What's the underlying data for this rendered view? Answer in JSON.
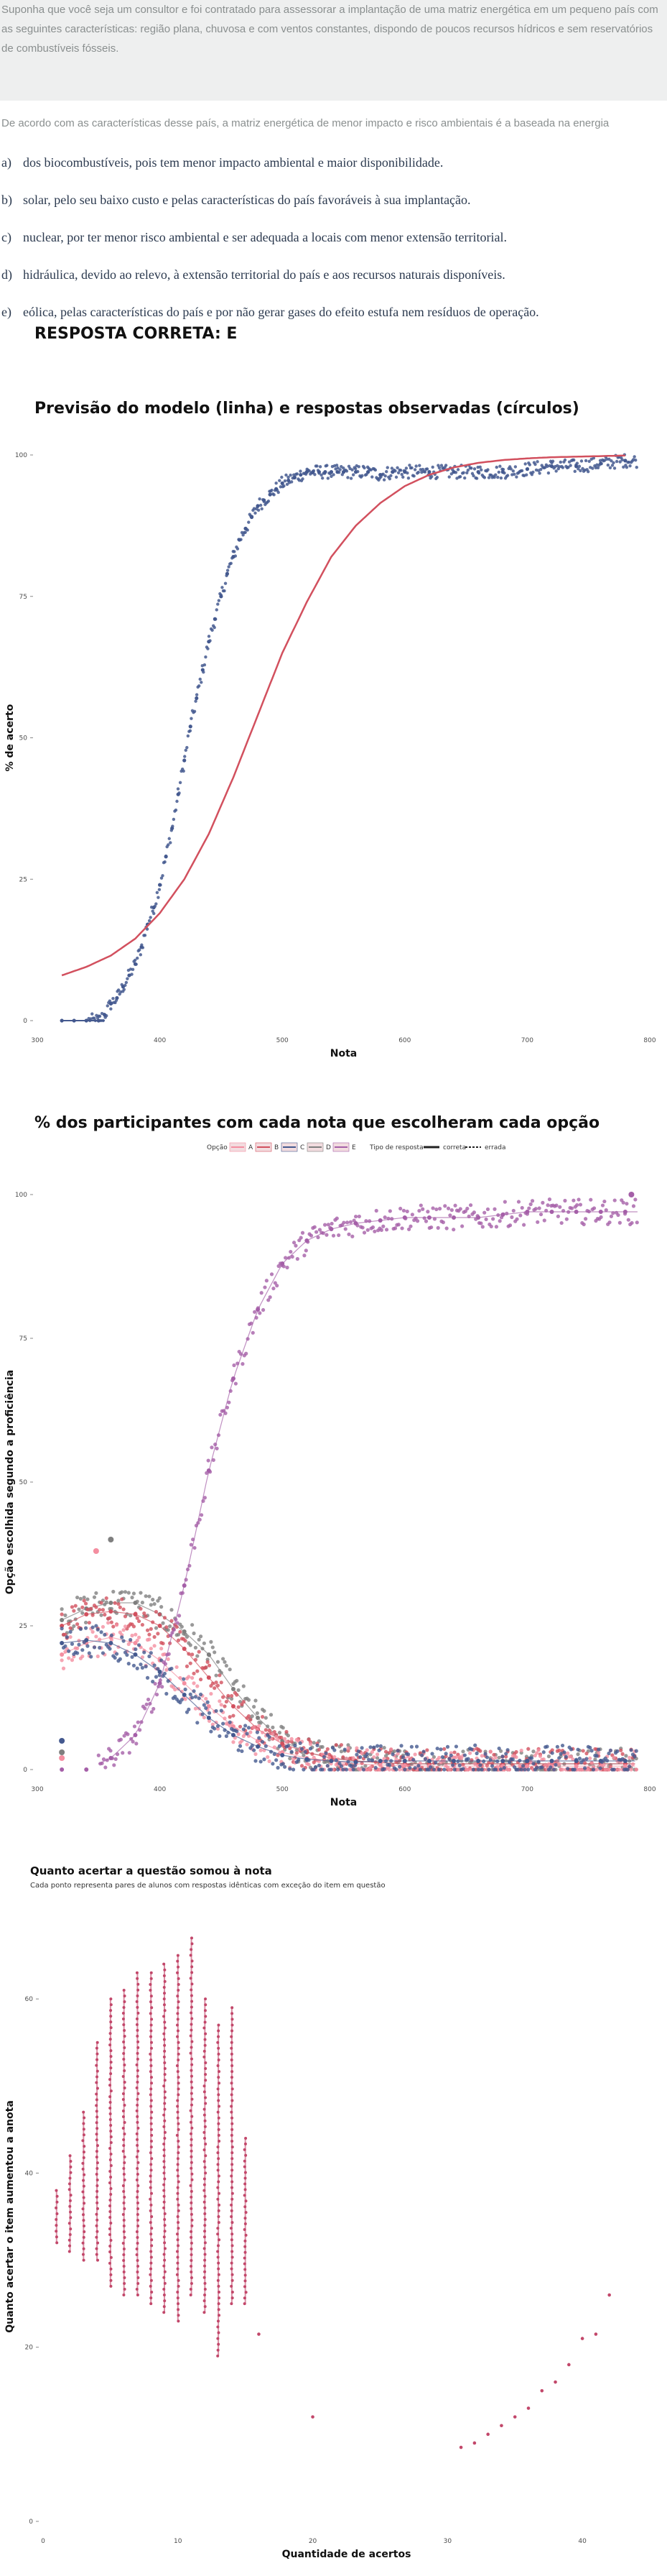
{
  "question": {
    "context": "Suponha que você seja um consultor e foi contratado para assessorar a implantação de uma matriz energética em um pequeno país com as seguintes características: região plana, chuvosa e com ventos constantes, dispondo de poucos recursos hídricos e sem reservatórios de combustíveis fósseis.",
    "stem": "De acordo com as características desse país, a matriz energética de menor impacto e risco ambientais é a baseada na energia",
    "alternatives": [
      {
        "letter": "a)",
        "text": "dos biocombustíveis, pois tem menor impacto ambiental e maior disponibilidade."
      },
      {
        "letter": "b)",
        "text": "solar, pelo seu baixo custo e pelas características do país favoráveis à sua implantação."
      },
      {
        "letter": "c)",
        "text": "nuclear, por ter menor risco ambiental e ser adequada a locais com menor extensão territorial."
      },
      {
        "letter": "d)",
        "text": "hidráulica, devido ao relevo, à extensão territorial do país e aos recursos naturais disponíveis."
      },
      {
        "letter": "e)",
        "text": "eólica, pelas características do país e por não gerar gases do efeito estufa nem resíduos de operação."
      }
    ],
    "answer": "RESPOSTA CORRETA: E"
  },
  "colors": {
    "points": "#44598f",
    "model": "#d2505e",
    "opt_a": "#f48ea0",
    "opt_b": "#d2505e",
    "opt_c": "#44598f",
    "opt_d": "#7f7f7f",
    "opt_e": "#a55fa8",
    "scatter": "#c2476a"
  },
  "chart_data": [
    {
      "type": "scatter",
      "title": "Previsão do modelo (linha) e respostas observadas (círculos)",
      "xlabel": "Nota",
      "ylabel": "% de acerto",
      "xlim": [
        300,
        800
      ],
      "ylim": [
        0,
        100
      ],
      "xticks": [
        300,
        400,
        500,
        600,
        700,
        800
      ],
      "yticks": [
        0,
        25,
        50,
        75,
        100
      ],
      "observed_points": {
        "x": [
          320,
          330,
          340,
          350,
          355,
          360,
          365,
          370,
          375,
          380,
          385,
          390,
          395,
          400,
          405,
          410,
          415,
          420,
          425,
          430,
          435,
          440,
          445,
          450,
          455,
          460,
          465,
          470,
          475,
          480,
          485,
          490,
          495,
          500,
          505,
          510,
          515,
          520,
          525,
          530,
          535,
          540,
          545,
          550,
          560,
          570,
          580,
          590,
          600,
          620,
          640,
          660,
          680,
          700,
          720,
          740,
          760,
          780
        ],
        "y": [
          0,
          0,
          0,
          0,
          1,
          3,
          4,
          6,
          8,
          10,
          13,
          17,
          20,
          24,
          29,
          34,
          40,
          46,
          52,
          57,
          62,
          67,
          71,
          75,
          79,
          82,
          85,
          87,
          89,
          91,
          92,
          93,
          94,
          95,
          95.5,
          96,
          96.5,
          97,
          97,
          97,
          97,
          97,
          97,
          97,
          97,
          97,
          96.5,
          97,
          97,
          97,
          97,
          97,
          97,
          97.5,
          98,
          98,
          98.5,
          99
        ]
      },
      "model_line": {
        "x": [
          320,
          340,
          360,
          380,
          400,
          420,
          440,
          460,
          480,
          500,
          520,
          540,
          560,
          580,
          600,
          620,
          640,
          660,
          680,
          700,
          720,
          740,
          760,
          780
        ],
        "y": [
          8,
          9.5,
          11.5,
          14.5,
          19,
          25,
          33,
          43,
          54,
          65,
          74,
          82,
          87.5,
          91.5,
          94.5,
          96.5,
          97.8,
          98.6,
          99.1,
          99.4,
          99.6,
          99.7,
          99.8,
          99.9
        ]
      }
    },
    {
      "type": "scatter",
      "title": "% dos participantes com cada nota que escolheram cada opção",
      "xlabel": "Nota",
      "ylabel": "Opção escolhida segundo a proficiência",
      "xlim": [
        300,
        800
      ],
      "ylim": [
        0,
        100
      ],
      "xticks": [
        300,
        400,
        500,
        600,
        700,
        800
      ],
      "yticks": [
        0,
        25,
        50,
        75,
        100
      ],
      "legend": {
        "option_title": "Opção",
        "options": [
          "A",
          "B",
          "C",
          "D",
          "E"
        ],
        "type_title": "Tipo de resposta",
        "types": [
          "correta",
          "errada"
        ]
      },
      "x": [
        320,
        340,
        360,
        380,
        400,
        420,
        440,
        460,
        480,
        500,
        520,
        540,
        560,
        580,
        600,
        620,
        640,
        660,
        680,
        700,
        720,
        740,
        760,
        780
      ],
      "series": [
        {
          "name": "A",
          "values": [
            20,
            22,
            23,
            22,
            19,
            15,
            11,
            7.5,
            5,
            3,
            2,
            1.5,
            1,
            0.8,
            0.7,
            0.6,
            0.6,
            0.6,
            0.6,
            0.6,
            0.6,
            0.6,
            0.6,
            0.6
          ]
        },
        {
          "name": "B",
          "values": [
            25,
            27,
            27.5,
            27,
            25,
            21,
            16,
            11,
            7,
            4.5,
            3,
            2,
            1.5,
            1.2,
            1,
            1,
            1,
            1,
            1,
            1,
            1,
            1,
            1,
            1
          ]
        },
        {
          "name": "C",
          "values": [
            22,
            22.5,
            22,
            20,
            17,
            13,
            9,
            6,
            4,
            2.5,
            1.8,
            1.5,
            1.3,
            1.5,
            1.5,
            1.5,
            1.5,
            1.5,
            1.5,
            1.5,
            1.5,
            1.5,
            1.5,
            1.5
          ]
        },
        {
          "name": "D",
          "values": [
            26,
            28,
            29,
            29,
            27,
            24,
            20,
            14,
            9,
            5,
            3,
            2,
            1.5,
            1.2,
            1,
            1,
            1,
            1,
            1,
            1,
            1,
            1,
            1,
            1
          ]
        },
        {
          "name": "E",
          "values": [
            0,
            0,
            2,
            6,
            15,
            32,
            52,
            68,
            80,
            88,
            92,
            94,
            95,
            95.5,
            96,
            96,
            96,
            96,
            96.5,
            97,
            97,
            97,
            97,
            97
          ]
        }
      ],
      "outliers": [
        {
          "x": 348,
          "y": 38,
          "option": "A"
        },
        {
          "x": 360,
          "y": 40,
          "option": "D"
        },
        {
          "x": 320,
          "y": 5,
          "option": "C"
        },
        {
          "x": 320,
          "y": 3,
          "option": "D"
        },
        {
          "x": 320,
          "y": 2,
          "option": "A"
        },
        {
          "x": 785,
          "y": 100,
          "option": "E"
        }
      ]
    },
    {
      "type": "scatter",
      "title": "Quanto acertar a questão somou à nota",
      "subtitle": "Cada ponto representa pares de alunos com respostas idênticas com exceção do item em questão",
      "xlabel": "Quantidade de acertos",
      "ylabel": "Quanto acertar o item aumentou a anota",
      "xlim": [
        0,
        45
      ],
      "ylim": [
        0,
        70
      ],
      "xticks": [
        0,
        10,
        20,
        30,
        40
      ],
      "yticks": [
        0,
        20,
        40,
        60
      ],
      "columns": [
        {
          "x": 1,
          "ymin": 32,
          "ymax": 38
        },
        {
          "x": 2,
          "ymin": 31,
          "ymax": 42
        },
        {
          "x": 3,
          "ymin": 30,
          "ymax": 47
        },
        {
          "x": 4,
          "ymin": 30,
          "ymax": 55
        },
        {
          "x": 5,
          "ymin": 27,
          "ymax": 60
        },
        {
          "x": 6,
          "ymin": 26,
          "ymax": 61
        },
        {
          "x": 7,
          "ymin": 26,
          "ymax": 63
        },
        {
          "x": 8,
          "ymin": 25,
          "ymax": 63
        },
        {
          "x": 9,
          "ymin": 24,
          "ymax": 64
        },
        {
          "x": 10,
          "ymin": 23,
          "ymax": 65
        },
        {
          "x": 11,
          "ymin": 26,
          "ymax": 67
        },
        {
          "x": 12,
          "ymin": 24,
          "ymax": 60
        },
        {
          "x": 13,
          "ymin": 19,
          "ymax": 57
        },
        {
          "x": 14,
          "ymin": 25,
          "ymax": 59
        },
        {
          "x": 15,
          "ymin": 25,
          "ymax": 44
        }
      ],
      "isolated_points": {
        "x": [
          16,
          20,
          31,
          32,
          33,
          34,
          35,
          36,
          37,
          38,
          39,
          40,
          41,
          42
        ],
        "y": [
          21.5,
          12,
          8.5,
          9,
          10,
          11,
          12,
          13,
          15,
          16,
          18,
          21,
          21.5,
          26
        ]
      }
    }
  ]
}
